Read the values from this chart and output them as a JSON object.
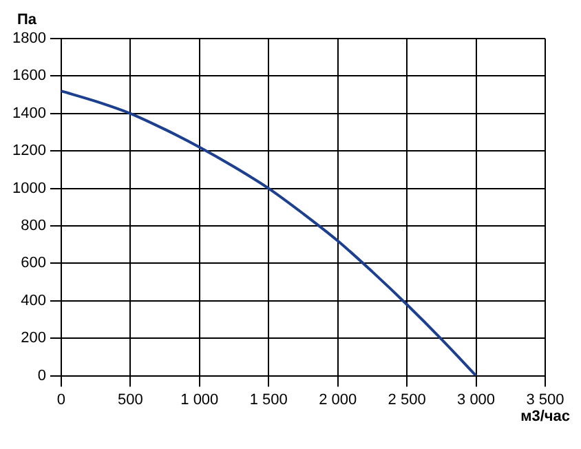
{
  "chart_data": {
    "type": "line",
    "xlabel": "м3/час",
    "ylabel": "Па",
    "x": [
      0,
      250,
      500,
      750,
      1000,
      1250,
      1500,
      1750,
      2000,
      2250,
      2500,
      2750,
      3000
    ],
    "series": [
      {
        "color": "#1c3f8f",
        "values": [
          1520,
          1465,
          1400,
          1315,
          1220,
          1115,
          1000,
          865,
          720,
          555,
          380,
          195,
          0
        ]
      }
    ],
    "xlim": [
      0,
      3500
    ],
    "xticks": [
      0,
      {
        "value": 500,
        "label": "500"
      },
      {
        "value": 1000,
        "label": "1 000"
      },
      {
        "value": 1500,
        "label": "1 500"
      },
      {
        "value": 2000,
        "label": "2 000"
      },
      {
        "value": 2500,
        "label": "2 500"
      },
      {
        "value": 3000,
        "label": "3 000"
      },
      {
        "value": 3500,
        "label": "3 500"
      }
    ],
    "ylim": [
      0,
      1800
    ],
    "yticks": [
      0,
      200,
      400,
      600,
      800,
      1000,
      1200,
      1400,
      1600,
      1800
    ],
    "grid": true,
    "legend": false,
    "marker": "none",
    "line_style": "solid"
  }
}
